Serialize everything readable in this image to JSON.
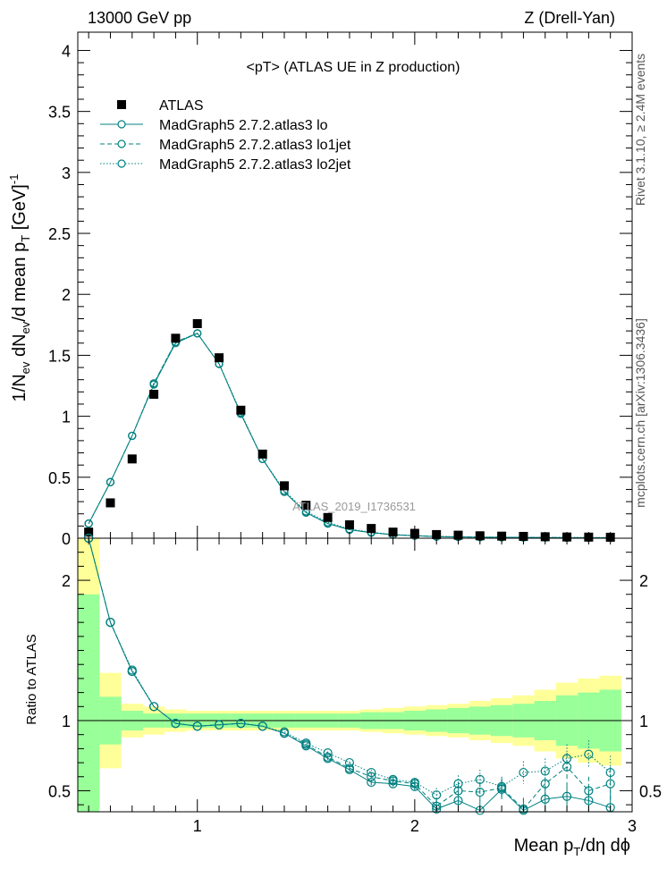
{
  "header": {
    "left": "13000 GeV pp",
    "right": "Z (Drell-Yan)"
  },
  "side_labels": {
    "rivet": "Rivet 3.1.10, ≥ 2.4M events",
    "mcplots": "mcplots.cern.ch [arXiv:1306.3436]"
  },
  "chart_data": [
    {
      "type": "scatter",
      "title": "<pT> (ATLAS UE in Z production)",
      "watermark": "ATLAS_2019_I1736531",
      "ylabel": "1/N_ev dN_ev/d mean p_T [GeV]^-1",
      "xlim": [
        0.45,
        3.0
      ],
      "ylim": [
        0,
        4.15
      ],
      "y_ticks": [
        0,
        0.5,
        1,
        1.5,
        2,
        2.5,
        3,
        3.5,
        4
      ],
      "y_tick_labels": [
        "0",
        "0.5",
        "1",
        "1.5",
        "2",
        "2.5",
        "3",
        "3.5",
        "4"
      ],
      "legend_position": "top-left",
      "x": [
        0.5,
        0.6,
        0.7,
        0.8,
        0.9,
        1.0,
        1.1,
        1.2,
        1.3,
        1.4,
        1.5,
        1.6,
        1.7,
        1.8,
        1.9,
        2.0,
        2.1,
        2.2,
        2.3,
        2.4,
        2.5,
        2.6,
        2.7,
        2.8,
        2.9
      ],
      "series": [
        {
          "name": "ATLAS",
          "style": "data",
          "values": [
            0.05,
            0.29,
            0.65,
            1.18,
            1.64,
            1.76,
            1.48,
            1.05,
            0.69,
            0.43,
            0.27,
            0.17,
            0.11,
            0.08,
            0.05,
            0.04,
            0.03,
            0.025,
            0.02,
            0.017,
            0.015,
            0.012,
            0.01,
            0.009,
            0.008
          ]
        },
        {
          "name": "MadGraph5 2.7.2.atlas3 lo",
          "style": "solid",
          "values": [
            0.12,
            0.46,
            0.84,
            1.26,
            1.6,
            1.68,
            1.43,
            1.02,
            0.65,
            0.38,
            0.21,
            0.12,
            0.07,
            0.045,
            0.028,
            0.02,
            0.013,
            0.01,
            0.008,
            0.007,
            0.006,
            0.005,
            0.004,
            0.004,
            0.003
          ]
        },
        {
          "name": "MadGraph5 2.7.2.atlas3 lo1jet",
          "style": "dashed",
          "values": [
            0.12,
            0.46,
            0.84,
            1.27,
            1.61,
            1.68,
            1.43,
            1.02,
            0.65,
            0.38,
            0.21,
            0.12,
            0.07,
            0.046,
            0.029,
            0.021,
            0.014,
            0.011,
            0.009,
            0.008,
            0.006,
            0.006,
            0.005,
            0.005,
            0.004
          ]
        },
        {
          "name": "MadGraph5 2.7.2.atlas3 lo2jet",
          "style": "dotted",
          "values": [
            0.12,
            0.46,
            0.84,
            1.27,
            1.61,
            1.68,
            1.43,
            1.03,
            0.65,
            0.39,
            0.22,
            0.13,
            0.075,
            0.05,
            0.03,
            0.022,
            0.015,
            0.013,
            0.01,
            0.009,
            0.008,
            0.007,
            0.007,
            0.006,
            0.005
          ]
        }
      ]
    },
    {
      "type": "scatter",
      "ylabel": "Ratio to ATLAS",
      "xlabel": "Mean p_T/dη dϕ",
      "xlim": [
        0.45,
        3.0
      ],
      "ylim": [
        0.35,
        2.3
      ],
      "x_ticks": [
        1,
        2,
        3
      ],
      "x_tick_labels": [
        "1",
        "2",
        "3"
      ],
      "y_ticks": [
        0.5,
        1,
        2
      ],
      "y_tick_labels": [
        "0.5",
        "1",
        "2"
      ],
      "x": [
        0.5,
        0.6,
        0.7,
        0.8,
        0.9,
        1.0,
        1.1,
        1.2,
        1.3,
        1.4,
        1.5,
        1.6,
        1.7,
        1.8,
        1.9,
        2.0,
        2.1,
        2.2,
        2.3,
        2.4,
        2.5,
        2.6,
        2.7,
        2.8,
        2.9
      ],
      "bands": {
        "green_half_width": [
          0.9,
          0.17,
          0.07,
          0.05,
          0.05,
          0.05,
          0.05,
          0.05,
          0.05,
          0.05,
          0.05,
          0.05,
          0.05,
          0.06,
          0.06,
          0.07,
          0.08,
          0.09,
          0.1,
          0.11,
          0.12,
          0.14,
          0.18,
          0.2,
          0.22
        ],
        "yellow_half_width": [
          1.4,
          0.34,
          0.12,
          0.1,
          0.08,
          0.07,
          0.07,
          0.07,
          0.07,
          0.07,
          0.07,
          0.07,
          0.07,
          0.08,
          0.09,
          0.1,
          0.11,
          0.12,
          0.14,
          0.16,
          0.18,
          0.22,
          0.27,
          0.3,
          0.32
        ]
      },
      "series": [
        {
          "name": "MadGraph5 2.7.2.atlas3 lo",
          "style": "solid",
          "values": [
            2.3,
            1.7,
            1.35,
            1.1,
            0.98,
            0.96,
            0.97,
            0.98,
            0.96,
            0.91,
            0.82,
            0.73,
            0.65,
            0.56,
            0.55,
            0.53,
            0.37,
            0.43,
            0.36,
            0.51,
            0.36,
            0.44,
            0.46,
            0.43,
            0.38
          ],
          "errors": [
            0,
            0,
            0,
            0,
            0,
            0,
            0,
            0,
            0,
            0,
            0,
            0.01,
            0.01,
            0.02,
            0.02,
            0.03,
            0.05,
            0.06,
            0.07,
            0.07,
            0.08,
            0.09,
            0.1,
            0.1,
            0.12
          ]
        },
        {
          "name": "MadGraph5 2.7.2.atlas3 lo1jet",
          "style": "dashed",
          "values": [
            2.3,
            1.7,
            1.35,
            1.1,
            0.98,
            0.96,
            0.97,
            0.98,
            0.96,
            0.91,
            0.83,
            0.74,
            0.66,
            0.6,
            0.57,
            0.55,
            0.39,
            0.5,
            0.49,
            0.52,
            0.37,
            0.55,
            0.67,
            0.5,
            0.55
          ],
          "errors": [
            0,
            0,
            0,
            0,
            0,
            0,
            0,
            0,
            0,
            0,
            0,
            0.01,
            0.01,
            0.02,
            0.02,
            0.03,
            0.05,
            0.06,
            0.07,
            0.07,
            0.08,
            0.09,
            0.1,
            0.1,
            0.12
          ]
        },
        {
          "name": "MadGraph5 2.7.2.atlas3 lo2jet",
          "style": "dotted",
          "values": [
            2.3,
            1.7,
            1.36,
            1.1,
            0.98,
            0.96,
            0.97,
            0.98,
            0.96,
            0.92,
            0.84,
            0.77,
            0.7,
            0.63,
            0.58,
            0.56,
            0.47,
            0.55,
            0.58,
            0.53,
            0.63,
            0.64,
            0.73,
            0.76,
            0.63
          ],
          "errors": [
            0,
            0,
            0,
            0,
            0,
            0,
            0,
            0,
            0,
            0,
            0,
            0.01,
            0.01,
            0.02,
            0.02,
            0.03,
            0.05,
            0.06,
            0.07,
            0.07,
            0.08,
            0.09,
            0.1,
            0.1,
            0.12
          ]
        }
      ]
    }
  ]
}
